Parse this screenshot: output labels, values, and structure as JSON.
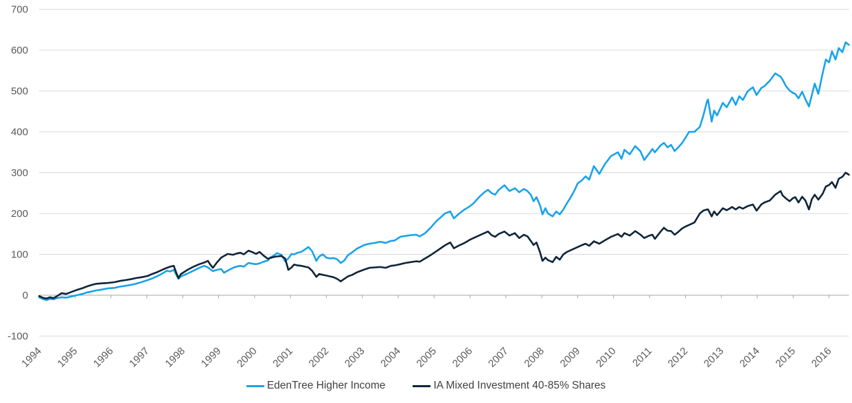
{
  "chart_data": {
    "type": "line",
    "title": "",
    "xlabel": "",
    "ylabel": "",
    "grid": true,
    "legend_position": "bottom-center",
    "colors": {
      "gridline": "#d9d9d9",
      "axis_line": "#a6a6a6",
      "tick_label": "#595959",
      "legend_text": "#404040",
      "background": "#ffffff"
    },
    "y_axis": {
      "min": -100,
      "max": 700,
      "tick_step": 100,
      "ticks": [
        700,
        600,
        500,
        400,
        300,
        200,
        100,
        0,
        -100
      ]
    },
    "x_axis": {
      "tick_years": [
        1994,
        1995,
        1996,
        1997,
        1998,
        1999,
        2000,
        2001,
        2002,
        2003,
        2004,
        2005,
        2006,
        2007,
        2008,
        2009,
        2010,
        2011,
        2012,
        2013,
        2014,
        2015,
        2016
      ],
      "label_rotation_deg": -45
    },
    "x": [
      1994.0,
      1994.1,
      1994.2,
      1994.3,
      1994.4,
      1994.5,
      1994.63,
      1994.75,
      1994.9,
      1995.05,
      1995.2,
      1995.35,
      1995.5,
      1995.6,
      1995.75,
      1995.93,
      1996.1,
      1996.25,
      1996.4,
      1996.54,
      1996.7,
      1996.85,
      1997.02,
      1997.15,
      1997.3,
      1997.45,
      1997.56,
      1997.65,
      1997.75,
      1997.82,
      1997.88,
      1997.95,
      1998.13,
      1998.3,
      1998.46,
      1998.6,
      1998.7,
      1998.76,
      1998.84,
      1998.95,
      1999.07,
      1999.15,
      1999.25,
      1999.4,
      1999.5,
      1999.6,
      1999.7,
      1999.83,
      1999.95,
      2000.04,
      2000.14,
      2000.25,
      2000.37,
      2000.43,
      2000.55,
      2000.62,
      2000.75,
      2000.85,
      2000.94,
      2001.03,
      2001.1,
      2001.2,
      2001.3,
      2001.4,
      2001.5,
      2001.6,
      2001.72,
      2001.8,
      2001.9,
      2002.0,
      2002.1,
      2002.2,
      2002.3,
      2002.4,
      2002.5,
      2002.6,
      2002.72,
      2002.85,
      2003.06,
      2003.2,
      2003.35,
      2003.5,
      2003.65,
      2003.8,
      2003.9,
      2004.06,
      2004.2,
      2004.35,
      2004.5,
      2004.6,
      2004.75,
      2004.9,
      2005.07,
      2005.2,
      2005.3,
      2005.45,
      2005.55,
      2005.7,
      2005.85,
      2006.0,
      2006.1,
      2006.25,
      2006.4,
      2006.5,
      2006.6,
      2006.7,
      2006.8,
      2006.96,
      2007.1,
      2007.25,
      2007.37,
      2007.5,
      2007.6,
      2007.7,
      2007.77,
      2007.85,
      2007.95,
      2008.02,
      2008.1,
      2008.17,
      2008.3,
      2008.4,
      2008.5,
      2008.6,
      2008.7,
      2008.8,
      2008.9,
      2009.0,
      2009.1,
      2009.22,
      2009.32,
      2009.45,
      2009.6,
      2009.75,
      2009.93,
      2010.12,
      2010.22,
      2010.3,
      2010.45,
      2010.6,
      2010.75,
      2010.85,
      2011.0,
      2011.08,
      2011.15,
      2011.3,
      2011.4,
      2011.5,
      2011.6,
      2011.7,
      2011.8,
      2011.9,
      2012.0,
      2012.1,
      2012.25,
      2012.4,
      2012.5,
      2012.6,
      2012.63,
      2012.73,
      2012.8,
      2012.88,
      2013.04,
      2013.15,
      2013.3,
      2013.4,
      2013.5,
      2013.6,
      2013.73,
      2013.88,
      2013.98,
      2014.11,
      2014.2,
      2014.35,
      2014.5,
      2014.65,
      2014.71,
      2014.8,
      2014.9,
      2015.0,
      2015.06,
      2015.15,
      2015.25,
      2015.34,
      2015.44,
      2015.52,
      2015.6,
      2015.7,
      2015.82,
      2015.91,
      2016.0,
      2016.08,
      2016.18,
      2016.27,
      2016.37,
      2016.46,
      2016.55
    ],
    "series": [
      {
        "name": "EdenTree Higher Income",
        "color": "#18a3e8",
        "values": [
          -5,
          -9,
          -12,
          -9,
          -10,
          -7,
          -5,
          -6,
          -3,
          0,
          3,
          7,
          10,
          12,
          14,
          17,
          18,
          21,
          23,
          25,
          28,
          32,
          37,
          41,
          47,
          54,
          60,
          58,
          62,
          50,
          40,
          46,
          53,
          60,
          67,
          72,
          68,
          64,
          59,
          62,
          64,
          55,
          60,
          67,
          70,
          72,
          70,
          79,
          77,
          76,
          78,
          82,
          85,
          92,
          98,
          103,
          99,
          83,
          90,
          101,
          100,
          104,
          106,
          112,
          118,
          108,
          84,
          95,
          100,
          92,
          90,
          91,
          88,
          79,
          85,
          98,
          105,
          114,
          123,
          126,
          128,
          131,
          128,
          133,
          134,
          143,
          145,
          147,
          148,
          144,
          152,
          165,
          182,
          192,
          200,
          205,
          188,
          200,
          210,
          218,
          225,
          240,
          252,
          258,
          250,
          246,
          258,
          269,
          255,
          262,
          252,
          260,
          255,
          245,
          230,
          240,
          220,
          198,
          213,
          200,
          193,
          205,
          198,
          210,
          225,
          239,
          255,
          274,
          280,
          291,
          283,
          316,
          297,
          320,
          341,
          350,
          334,
          356,
          345,
          365,
          352,
          331,
          348,
          358,
          350,
          366,
          373,
          362,
          368,
          353,
          362,
          372,
          385,
          400,
          400,
          412,
          440,
          475,
          479,
          425,
          452,
          440,
          471,
          460,
          484,
          466,
          487,
          478,
          499,
          509,
          490,
          507,
          512,
          525,
          543,
          535,
          527,
          512,
          501,
          495,
          493,
          482,
          498,
          480,
          462,
          490,
          518,
          493,
          543,
          577,
          570,
          597,
          577,
          605,
          595,
          619,
          613
        ]
      },
      {
        "name": "IA Mixed Investment 40-85% Shares",
        "color": "#0e2439",
        "values": [
          -2,
          -6,
          -8,
          -5,
          -7,
          -2,
          5,
          3,
          8,
          13,
          17,
          22,
          26,
          28,
          29,
          30,
          32,
          35,
          37,
          39,
          42,
          44,
          47,
          52,
          57,
          63,
          67,
          70,
          72,
          55,
          42,
          52,
          62,
          70,
          76,
          80,
          84,
          76,
          67,
          80,
          92,
          96,
          101,
          99,
          102,
          104,
          100,
          109,
          105,
          101,
          106,
          97,
          89,
          91,
          94,
          95,
          96,
          90,
          62,
          68,
          75,
          73,
          72,
          70,
          68,
          60,
          45,
          52,
          50,
          48,
          46,
          44,
          40,
          34,
          40,
          46,
          50,
          56,
          63,
          67,
          68,
          69,
          67,
          72,
          73,
          76,
          79,
          81,
          83,
          82,
          90,
          98,
          108,
          116,
          122,
          129,
          115,
          122,
          128,
          136,
          140,
          146,
          152,
          156,
          147,
          143,
          150,
          156,
          146,
          152,
          140,
          148,
          144,
          132,
          123,
          129,
          105,
          84,
          92,
          86,
          81,
          94,
          87,
          100,
          106,
          110,
          114,
          118,
          122,
          126,
          121,
          132,
          126,
          134,
          143,
          150,
          143,
          152,
          146,
          157,
          148,
          140,
          146,
          148,
          138,
          155,
          165,
          158,
          157,
          148,
          155,
          163,
          168,
          172,
          178,
          200,
          207,
          210,
          210,
          193,
          205,
          196,
          213,
          208,
          216,
          210,
          216,
          212,
          218,
          222,
          207,
          222,
          227,
          232,
          246,
          255,
          244,
          237,
          230,
          238,
          240,
          227,
          241,
          232,
          210,
          235,
          246,
          234,
          248,
          266,
          270,
          277,
          263,
          285,
          290,
          300,
          295
        ]
      }
    ]
  }
}
